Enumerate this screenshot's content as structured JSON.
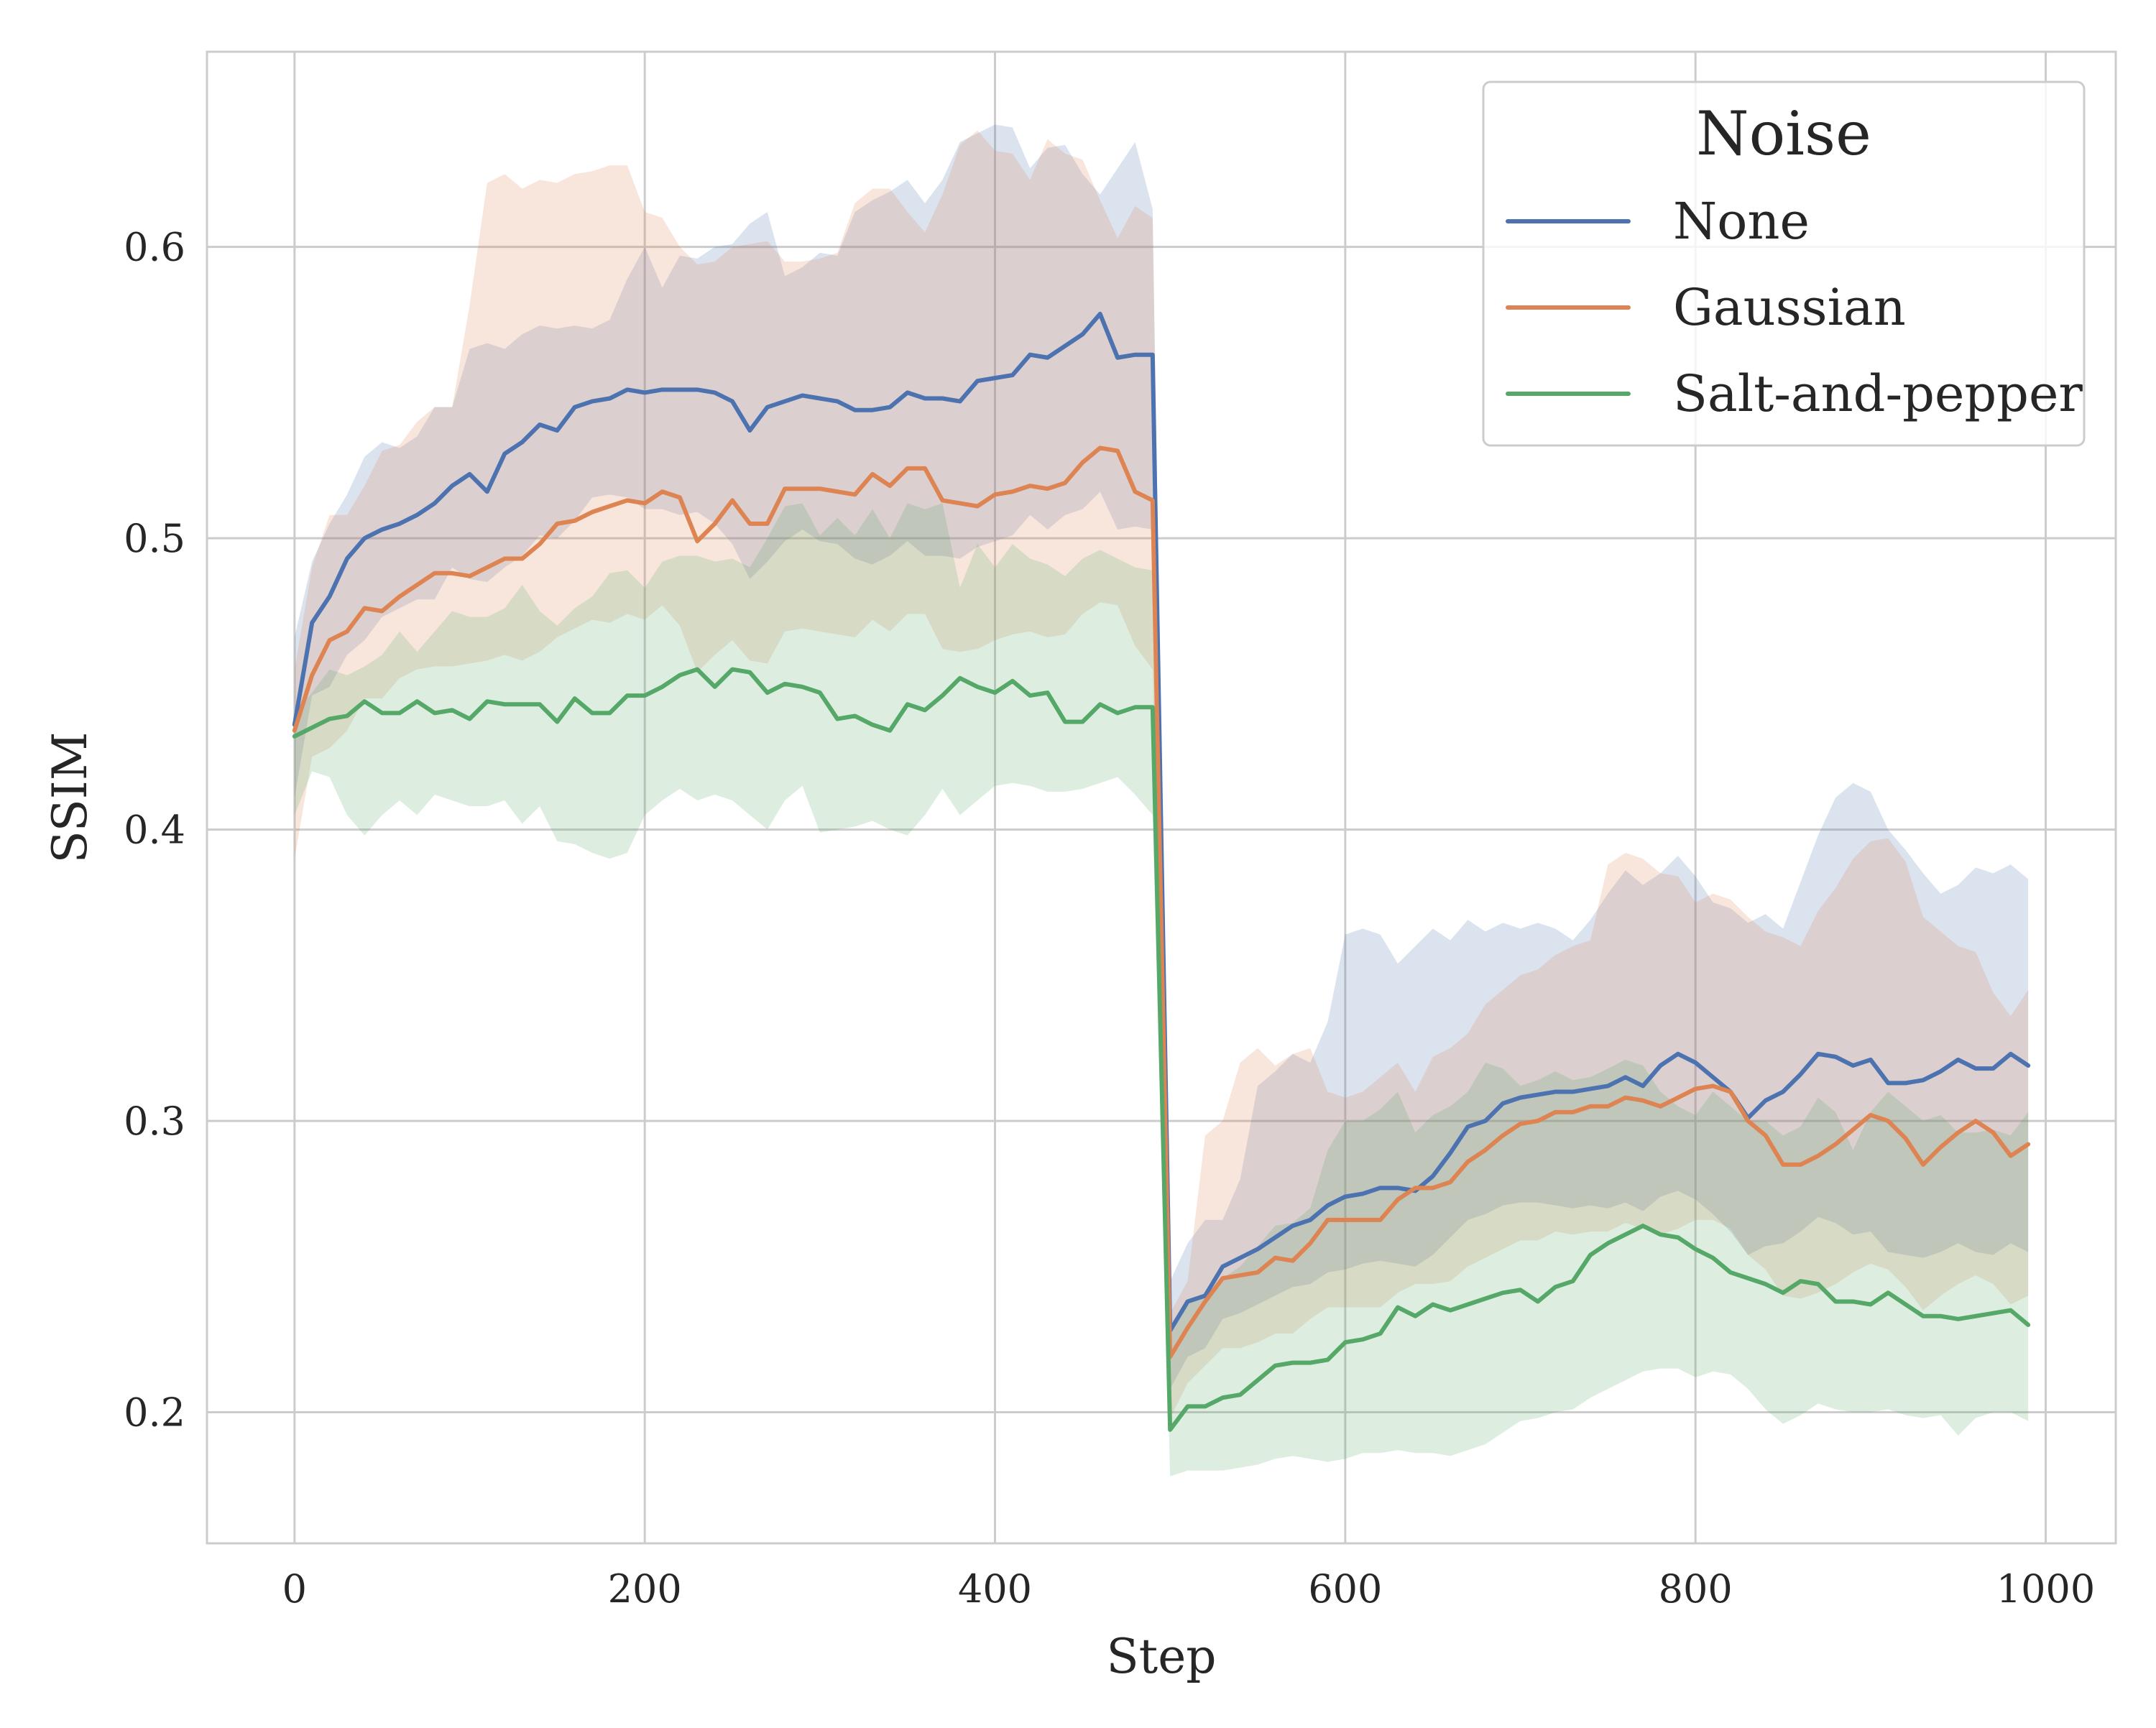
{
  "chart_data": {
    "type": "line",
    "xlabel": "Step",
    "ylabel": "SSIM",
    "xlim": [
      -50,
      1040
    ],
    "ylim": [
      0.155,
      0.667
    ],
    "xticks": [
      "0",
      "200",
      "400",
      "600",
      "800",
      "1000"
    ],
    "xtick_values": [
      0,
      200,
      400,
      600,
      800,
      1000
    ],
    "yticks": [
      "0.2",
      "0.3",
      "0.4",
      "0.5",
      "0.6"
    ],
    "ytick_values": [
      0.2,
      0.3,
      0.4,
      0.5,
      0.6
    ],
    "grid": true,
    "legend": {
      "title": "Noise",
      "placement": "upper-right"
    },
    "x": [
      0,
      10,
      20,
      30,
      40,
      50,
      60,
      70,
      80,
      90,
      100,
      110,
      120,
      130,
      140,
      150,
      160,
      170,
      180,
      190,
      200,
      210,
      220,
      230,
      240,
      250,
      260,
      270,
      280,
      290,
      300,
      310,
      320,
      330,
      340,
      350,
      360,
      370,
      380,
      390,
      400,
      410,
      420,
      430,
      440,
      450,
      460,
      470,
      480,
      490,
      500,
      510,
      520,
      530,
      540,
      550,
      560,
      570,
      580,
      590,
      600,
      610,
      620,
      630,
      640,
      650,
      660,
      670,
      680,
      690,
      700,
      710,
      720,
      730,
      740,
      750,
      760,
      770,
      780,
      790,
      800,
      810,
      820,
      830,
      840,
      850,
      860,
      870,
      880,
      890,
      900,
      910,
      920,
      930,
      940,
      950,
      960,
      970,
      980,
      990
    ],
    "series": [
      {
        "name": "None",
        "color": "#4C72B0",
        "values": [
          0.436,
          0.471,
          0.48,
          0.493,
          0.5,
          0.503,
          0.505,
          0.508,
          0.512,
          0.518,
          0.522,
          0.516,
          0.529,
          0.533,
          0.539,
          0.537,
          0.545,
          0.547,
          0.548,
          0.551,
          0.55,
          0.551,
          0.551,
          0.551,
          0.55,
          0.547,
          0.537,
          0.545,
          0.547,
          0.549,
          0.548,
          0.547,
          0.544,
          0.544,
          0.545,
          0.55,
          0.548,
          0.548,
          0.547,
          0.554,
          0.555,
          0.556,
          0.563,
          0.562,
          0.566,
          0.57,
          0.577,
          0.562,
          0.563,
          0.563,
          0.228,
          0.238,
          0.24,
          0.25,
          0.253,
          0.256,
          0.26,
          0.264,
          0.266,
          0.271,
          0.274,
          0.275,
          0.277,
          0.277,
          0.276,
          0.281,
          0.289,
          0.298,
          0.3,
          0.306,
          0.308,
          0.309,
          0.31,
          0.31,
          0.311,
          0.312,
          0.315,
          0.312,
          0.319,
          0.323,
          0.32,
          0.315,
          0.31,
          0.301,
          0.307,
          0.31,
          0.316,
          0.323,
          0.322,
          0.319,
          0.321,
          0.313,
          0.313,
          0.314,
          0.317,
          0.321,
          0.318,
          0.318,
          0.323,
          0.319
        ],
        "upper": [
          0.466,
          0.492,
          0.505,
          0.515,
          0.528,
          0.533,
          0.531,
          0.535,
          0.545,
          0.545,
          0.565,
          0.567,
          0.565,
          0.57,
          0.573,
          0.572,
          0.573,
          0.572,
          0.575,
          0.589,
          0.6,
          0.586,
          0.597,
          0.596,
          0.6,
          0.601,
          0.608,
          0.612,
          0.59,
          0.593,
          0.598,
          0.597,
          0.612,
          0.616,
          0.619,
          0.623,
          0.615,
          0.623,
          0.636,
          0.639,
          0.642,
          0.641,
          0.627,
          0.634,
          0.635,
          0.625,
          0.618,
          0.627,
          0.636,
          0.613,
          0.245,
          0.258,
          0.266,
          0.266,
          0.28,
          0.312,
          0.317,
          0.323,
          0.32,
          0.334,
          0.364,
          0.366,
          0.364,
          0.354,
          0.36,
          0.366,
          0.362,
          0.369,
          0.365,
          0.368,
          0.366,
          0.368,
          0.366,
          0.362,
          0.369,
          0.378,
          0.386,
          0.381,
          0.385,
          0.391,
          0.384,
          0.375,
          0.373,
          0.368,
          0.371,
          0.366,
          0.382,
          0.398,
          0.411,
          0.416,
          0.413,
          0.4,
          0.393,
          0.385,
          0.378,
          0.381,
          0.387,
          0.385,
          0.388,
          0.383
        ],
        "lower": [
          0.411,
          0.446,
          0.449,
          0.46,
          0.465,
          0.473,
          0.476,
          0.479,
          0.479,
          0.49,
          0.486,
          0.485,
          0.49,
          0.494,
          0.501,
          0.5,
          0.506,
          0.514,
          0.515,
          0.514,
          0.51,
          0.51,
          0.508,
          0.509,
          0.505,
          0.498,
          0.486,
          0.492,
          0.499,
          0.503,
          0.499,
          0.498,
          0.493,
          0.491,
          0.494,
          0.499,
          0.494,
          0.494,
          0.493,
          0.497,
          0.499,
          0.501,
          0.508,
          0.503,
          0.508,
          0.51,
          0.516,
          0.503,
          0.504,
          0.503,
          0.208,
          0.219,
          0.222,
          0.232,
          0.234,
          0.237,
          0.24,
          0.243,
          0.244,
          0.248,
          0.249,
          0.251,
          0.252,
          0.251,
          0.25,
          0.254,
          0.26,
          0.266,
          0.268,
          0.271,
          0.272,
          0.272,
          0.271,
          0.27,
          0.271,
          0.27,
          0.272,
          0.269,
          0.274,
          0.276,
          0.273,
          0.268,
          0.262,
          0.254,
          0.257,
          0.258,
          0.262,
          0.267,
          0.265,
          0.261,
          0.262,
          0.255,
          0.254,
          0.253,
          0.255,
          0.258,
          0.255,
          0.254,
          0.258,
          0.255
        ]
      },
      {
        "name": "Gaussian",
        "color": "#DD8452",
        "values": [
          0.434,
          0.453,
          0.465,
          0.468,
          0.476,
          0.475,
          0.48,
          0.484,
          0.488,
          0.488,
          0.487,
          0.49,
          0.493,
          0.493,
          0.498,
          0.505,
          0.506,
          0.509,
          0.511,
          0.513,
          0.512,
          0.516,
          0.514,
          0.499,
          0.505,
          0.513,
          0.505,
          0.505,
          0.517,
          0.517,
          0.517,
          0.516,
          0.515,
          0.522,
          0.518,
          0.524,
          0.524,
          0.513,
          0.512,
          0.511,
          0.515,
          0.516,
          0.518,
          0.517,
          0.519,
          0.526,
          0.531,
          0.53,
          0.516,
          0.513,
          0.219,
          0.229,
          0.238,
          0.246,
          0.247,
          0.248,
          0.253,
          0.252,
          0.258,
          0.266,
          0.266,
          0.266,
          0.266,
          0.273,
          0.277,
          0.277,
          0.279,
          0.286,
          0.29,
          0.295,
          0.299,
          0.3,
          0.303,
          0.303,
          0.305,
          0.305,
          0.308,
          0.307,
          0.305,
          0.308,
          0.311,
          0.312,
          0.31,
          0.3,
          0.295,
          0.285,
          0.285,
          0.288,
          0.292,
          0.297,
          0.302,
          0.3,
          0.294,
          0.285,
          0.291,
          0.296,
          0.3,
          0.296,
          0.288,
          0.292
        ],
        "upper": [
          0.455,
          0.49,
          0.508,
          0.508,
          0.518,
          0.53,
          0.532,
          0.54,
          0.545,
          0.545,
          0.58,
          0.622,
          0.625,
          0.62,
          0.623,
          0.622,
          0.625,
          0.626,
          0.628,
          0.628,
          0.612,
          0.61,
          0.6,
          0.594,
          0.595,
          0.6,
          0.601,
          0.602,
          0.595,
          0.595,
          0.596,
          0.598,
          0.615,
          0.62,
          0.62,
          0.612,
          0.605,
          0.618,
          0.635,
          0.64,
          0.633,
          0.632,
          0.623,
          0.637,
          0.632,
          0.63,
          0.616,
          0.603,
          0.614,
          0.61,
          0.234,
          0.245,
          0.295,
          0.3,
          0.32,
          0.325,
          0.319,
          0.323,
          0.325,
          0.31,
          0.308,
          0.31,
          0.315,
          0.32,
          0.31,
          0.322,
          0.325,
          0.33,
          0.34,
          0.345,
          0.35,
          0.352,
          0.357,
          0.36,
          0.362,
          0.388,
          0.392,
          0.39,
          0.385,
          0.384,
          0.375,
          0.378,
          0.376,
          0.37,
          0.365,
          0.363,
          0.36,
          0.372,
          0.38,
          0.39,
          0.396,
          0.397,
          0.389,
          0.37,
          0.365,
          0.36,
          0.358,
          0.344,
          0.336,
          0.345
        ],
        "lower": [
          0.39,
          0.425,
          0.428,
          0.434,
          0.445,
          0.445,
          0.452,
          0.455,
          0.456,
          0.456,
          0.457,
          0.458,
          0.46,
          0.458,
          0.461,
          0.466,
          0.469,
          0.472,
          0.471,
          0.474,
          0.472,
          0.477,
          0.47,
          0.454,
          0.46,
          0.465,
          0.458,
          0.457,
          0.468,
          0.469,
          0.468,
          0.467,
          0.466,
          0.472,
          0.468,
          0.474,
          0.474,
          0.462,
          0.461,
          0.462,
          0.465,
          0.467,
          0.468,
          0.466,
          0.467,
          0.474,
          0.478,
          0.477,
          0.463,
          0.455,
          0.198,
          0.21,
          0.216,
          0.222,
          0.222,
          0.224,
          0.227,
          0.227,
          0.232,
          0.236,
          0.236,
          0.236,
          0.236,
          0.241,
          0.244,
          0.244,
          0.245,
          0.25,
          0.253,
          0.256,
          0.259,
          0.259,
          0.262,
          0.261,
          0.262,
          0.262,
          0.265,
          0.263,
          0.261,
          0.263,
          0.266,
          0.266,
          0.263,
          0.254,
          0.249,
          0.24,
          0.239,
          0.241,
          0.244,
          0.248,
          0.251,
          0.249,
          0.243,
          0.235,
          0.24,
          0.244,
          0.247,
          0.244,
          0.237,
          0.24
        ]
      },
      {
        "name": "Salt-and-pepper",
        "color": "#55A868",
        "values": [
          0.432,
          0.435,
          0.438,
          0.439,
          0.444,
          0.44,
          0.44,
          0.444,
          0.44,
          0.441,
          0.438,
          0.444,
          0.443,
          0.443,
          0.443,
          0.437,
          0.445,
          0.44,
          0.44,
          0.446,
          0.446,
          0.449,
          0.453,
          0.455,
          0.449,
          0.455,
          0.454,
          0.447,
          0.45,
          0.449,
          0.447,
          0.438,
          0.439,
          0.436,
          0.434,
          0.443,
          0.441,
          0.446,
          0.452,
          0.449,
          0.447,
          0.451,
          0.446,
          0.447,
          0.437,
          0.437,
          0.443,
          0.44,
          0.442,
          0.442,
          0.194,
          0.202,
          0.202,
          0.205,
          0.206,
          0.211,
          0.216,
          0.217,
          0.217,
          0.218,
          0.224,
          0.225,
          0.227,
          0.236,
          0.233,
          0.237,
          0.235,
          0.237,
          0.239,
          0.241,
          0.242,
          0.238,
          0.243,
          0.245,
          0.254,
          0.258,
          0.261,
          0.264,
          0.261,
          0.26,
          0.256,
          0.253,
          0.248,
          0.246,
          0.244,
          0.241,
          0.245,
          0.244,
          0.238,
          0.238,
          0.237,
          0.241,
          0.237,
          0.233,
          0.233,
          0.232,
          0.233,
          0.234,
          0.235,
          0.23
        ],
        "upper": [
          0.44,
          0.447,
          0.455,
          0.453,
          0.456,
          0.46,
          0.468,
          0.461,
          0.468,
          0.475,
          0.473,
          0.473,
          0.476,
          0.484,
          0.475,
          0.47,
          0.476,
          0.48,
          0.488,
          0.489,
          0.483,
          0.492,
          0.494,
          0.494,
          0.492,
          0.493,
          0.49,
          0.5,
          0.511,
          0.512,
          0.501,
          0.507,
          0.501,
          0.51,
          0.5,
          0.512,
          0.51,
          0.512,
          0.483,
          0.498,
          0.49,
          0.498,
          0.493,
          0.491,
          0.487,
          0.493,
          0.496,
          0.493,
          0.49,
          0.489,
          0.23,
          0.238,
          0.24,
          0.246,
          0.25,
          0.257,
          0.264,
          0.265,
          0.27,
          0.29,
          0.3,
          0.3,
          0.304,
          0.31,
          0.296,
          0.302,
          0.305,
          0.31,
          0.32,
          0.318,
          0.312,
          0.314,
          0.317,
          0.314,
          0.315,
          0.318,
          0.321,
          0.319,
          0.31,
          0.305,
          0.302,
          0.31,
          0.305,
          0.3,
          0.3,
          0.295,
          0.298,
          0.308,
          0.303,
          0.29,
          0.303,
          0.31,
          0.305,
          0.3,
          0.302,
          0.296,
          0.296,
          0.297,
          0.295,
          0.303
        ],
        "lower": [
          0.405,
          0.42,
          0.418,
          0.405,
          0.398,
          0.405,
          0.41,
          0.405,
          0.412,
          0.41,
          0.408,
          0.408,
          0.41,
          0.402,
          0.408,
          0.396,
          0.395,
          0.392,
          0.39,
          0.392,
          0.405,
          0.41,
          0.414,
          0.41,
          0.412,
          0.41,
          0.405,
          0.4,
          0.41,
          0.415,
          0.399,
          0.4,
          0.401,
          0.403,
          0.4,
          0.398,
          0.405,
          0.414,
          0.405,
          0.41,
          0.415,
          0.416,
          0.415,
          0.413,
          0.413,
          0.414,
          0.416,
          0.418,
          0.412,
          0.405,
          0.178,
          0.18,
          0.18,
          0.18,
          0.181,
          0.182,
          0.184,
          0.185,
          0.184,
          0.183,
          0.184,
          0.186,
          0.186,
          0.187,
          0.186,
          0.186,
          0.185,
          0.187,
          0.189,
          0.193,
          0.197,
          0.198,
          0.2,
          0.201,
          0.205,
          0.208,
          0.211,
          0.214,
          0.215,
          0.215,
          0.212,
          0.214,
          0.213,
          0.208,
          0.201,
          0.196,
          0.199,
          0.203,
          0.201,
          0.2,
          0.2,
          0.201,
          0.199,
          0.198,
          0.199,
          0.192,
          0.198,
          0.2,
          0.2,
          0.197
        ]
      }
    ]
  }
}
